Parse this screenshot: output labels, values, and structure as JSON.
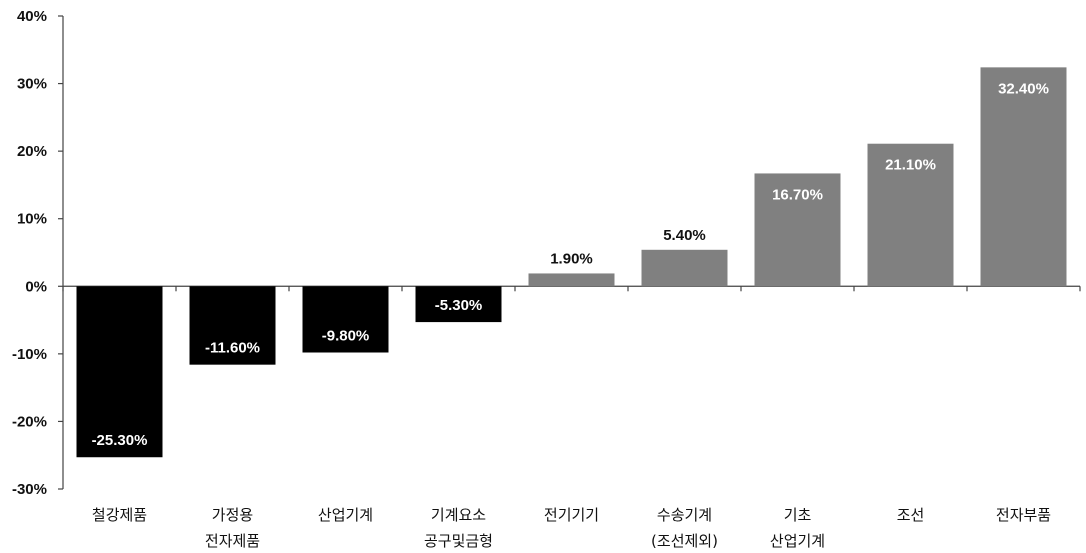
{
  "chart_data": {
    "type": "bar",
    "categories": [
      [
        "철강제품"
      ],
      [
        "가정용",
        "전자제품"
      ],
      [
        "산업기계"
      ],
      [
        "기계요소",
        "공구및금형"
      ],
      [
        "전기기기"
      ],
      [
        "수송기계",
        "(조선제외)"
      ],
      [
        "기초",
        "산업기계"
      ],
      [
        "조선"
      ],
      [
        "전자부품"
      ]
    ],
    "values": [
      -25.3,
      -11.6,
      -9.8,
      -5.3,
      1.9,
      5.4,
      16.7,
      21.1,
      32.4
    ],
    "data_labels": [
      "-25.30%",
      "-11.60%",
      "-9.80%",
      "-5.30%",
      "1.90%",
      "5.40%",
      "16.70%",
      "21.10%",
      "32.40%"
    ],
    "ylim": [
      -30,
      40
    ],
    "yticks": [
      -30,
      -20,
      -10,
      0,
      10,
      20,
      30,
      40
    ],
    "ytick_labels": [
      "-30%",
      "-20%",
      "-10%",
      "0%",
      "10%",
      "20%",
      "30%",
      "40%"
    ],
    "title": "",
    "xlabel": "",
    "ylabel": "",
    "grid": false,
    "legend": "none",
    "colors": {
      "negative": "#000000",
      "positive": "#808080",
      "axis": "#444444"
    }
  }
}
